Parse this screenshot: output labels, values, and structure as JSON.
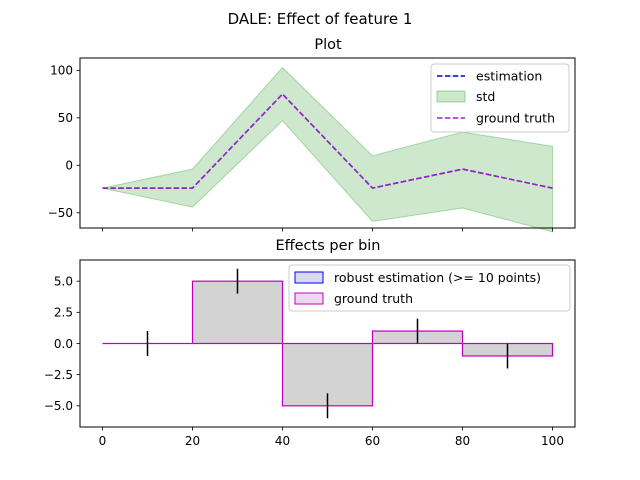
{
  "figure_title": "DALE: Effect of feature 1",
  "colors": {
    "estimation": "#0000cc",
    "std_fill": "#2ca02c",
    "ground_truth": "#a020c8",
    "bar_fill": "#d3d3d3",
    "bar_edge_est": "#0000ff",
    "bar_edge_gt": "#bf00bf",
    "errorbar": "#000000",
    "legend_gt_fill": "#f0d7f0",
    "legend_est_fill": "#d9d9f0"
  },
  "chart_data": [
    {
      "type": "line",
      "title": "Plot",
      "xlabel": "",
      "ylabel": "",
      "xlim": [
        -5,
        105
      ],
      "ylim": [
        -66,
        113
      ],
      "x_ticks_labeled": false,
      "yticks": [
        100,
        50,
        0,
        -50
      ],
      "ytick_labels": [
        "100",
        "50",
        "0",
        "−50"
      ],
      "x": [
        0,
        20,
        40,
        60,
        80,
        100
      ],
      "series": [
        {
          "name": "estimation",
          "style": "dashed",
          "values": [
            -24,
            -24,
            75,
            -24,
            -4,
            -24
          ]
        },
        {
          "name": "std",
          "style": "band",
          "lower": [
            -24,
            -44,
            47,
            -59,
            -45,
            -70
          ],
          "upper": [
            -24,
            -4,
            103,
            10,
            35,
            20
          ]
        },
        {
          "name": "ground truth",
          "style": "dashed",
          "values": [
            -24,
            -24,
            75,
            -24,
            -4,
            -24
          ]
        }
      ],
      "legend": {
        "position": "top-right",
        "entries": [
          "estimation",
          "std",
          "ground truth"
        ]
      }
    },
    {
      "type": "bar",
      "title": "Effects per bin",
      "xlabel": "",
      "ylabel": "",
      "xlim": [
        -5,
        105
      ],
      "ylim": [
        -6.7,
        6.7
      ],
      "xticks": [
        0,
        20,
        40,
        60,
        80,
        100
      ],
      "xtick_labels": [
        "0",
        "20",
        "40",
        "60",
        "80",
        "100"
      ],
      "yticks": [
        5.0,
        2.5,
        0.0,
        -2.5,
        -5.0
      ],
      "ytick_labels": [
        "5.0",
        "2.5",
        "0.0",
        "−2.5",
        "−5.0"
      ],
      "bins": [
        {
          "start": 0,
          "end": 20,
          "center": 10,
          "value": 0,
          "std": 1
        },
        {
          "start": 20,
          "end": 40,
          "center": 30,
          "value": 5,
          "std": 1
        },
        {
          "start": 40,
          "end": 60,
          "center": 50,
          "value": -5,
          "std": 1
        },
        {
          "start": 60,
          "end": 80,
          "center": 70,
          "value": 1,
          "std": 1
        },
        {
          "start": 80,
          "end": 100,
          "center": 90,
          "value": -1,
          "std": 1
        }
      ],
      "series": [
        {
          "name": "robust estimation (>= 10 points)",
          "values": [
            0,
            5,
            -5,
            1,
            -1
          ]
        },
        {
          "name": "ground truth",
          "values": [
            0,
            5,
            -5,
            1,
            -1
          ]
        }
      ],
      "legend": {
        "position": "top-right",
        "entries": [
          "robust estimation (>= 10 points)",
          "ground truth"
        ]
      }
    }
  ]
}
